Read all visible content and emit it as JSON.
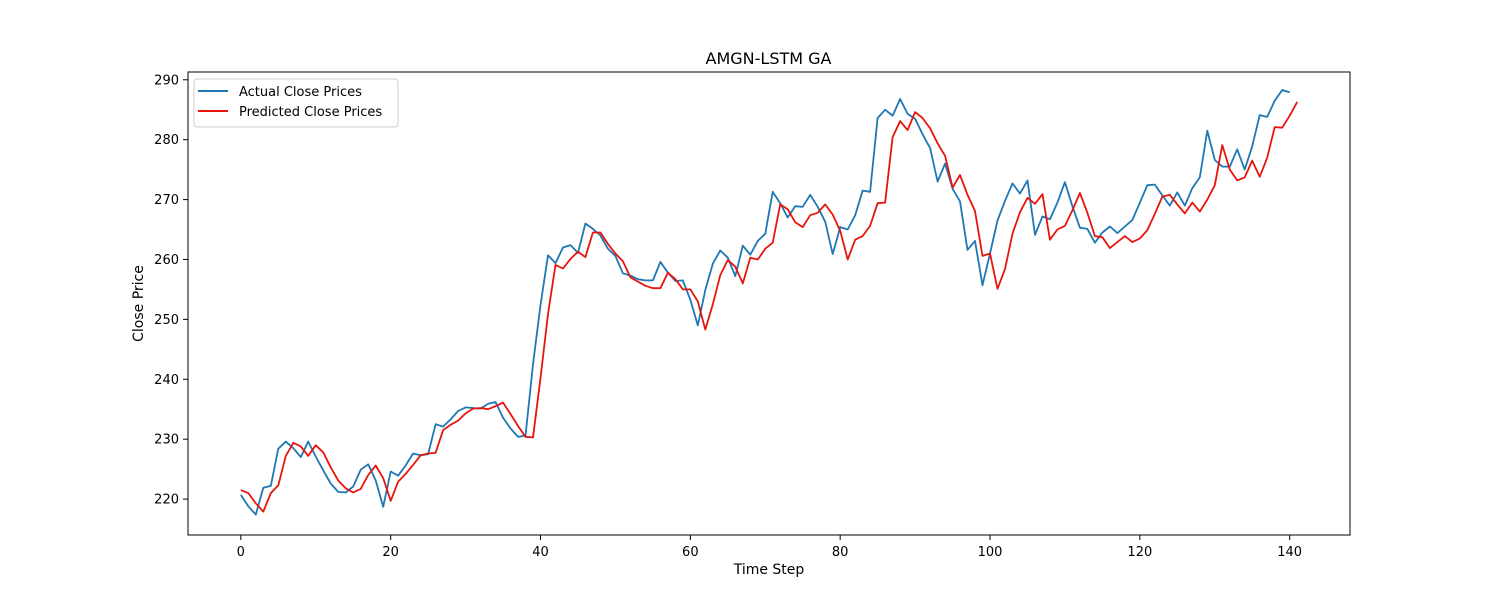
{
  "chart_data": {
    "type": "line",
    "title": "AMGN-LSTM GA",
    "xlabel": "Time Step",
    "ylabel": "Close Price",
    "xlim": [
      -7.05,
      148.05
    ],
    "ylim": [
      214.0,
      291.3
    ],
    "xticks": [
      0,
      20,
      40,
      60,
      80,
      100,
      120,
      140
    ],
    "yticks": [
      220,
      230,
      240,
      250,
      260,
      270,
      280,
      290
    ],
    "grid": false,
    "legend_position": "top-left",
    "series": [
      {
        "name": "Actual Close Prices",
        "color": "#1f77b4",
        "values": [
          220.7,
          218.8,
          217.4,
          221.9,
          222.2,
          228.4,
          229.6,
          228.5,
          227.0,
          229.6,
          227.1,
          224.8,
          222.6,
          221.2,
          221.1,
          222.1,
          224.9,
          225.8,
          223.1,
          218.7,
          224.6,
          223.9,
          225.6,
          227.6,
          227.3,
          227.5,
          232.5,
          232.1,
          233.3,
          234.7,
          235.3,
          235.2,
          235.1,
          235.9,
          236.2,
          233.6,
          231.8,
          230.4,
          230.6,
          242.5,
          252.4,
          260.7,
          259.4,
          262.0,
          262.4,
          261.1,
          266.0,
          265.1,
          264.0,
          261.8,
          260.6,
          257.7,
          257.3,
          256.7,
          256.5,
          256.5,
          259.6,
          257.8,
          256.4,
          256.5,
          253.3,
          249.0,
          254.9,
          259.3,
          261.5,
          260.3,
          257.2,
          262.3,
          260.8,
          263.1,
          264.3,
          271.3,
          269.4,
          267.0,
          268.9,
          268.8,
          270.8,
          268.8,
          266.3,
          260.9,
          265.4,
          265.0,
          267.4,
          271.5,
          271.3,
          283.6,
          285.0,
          284.0,
          286.8,
          284.3,
          283.5,
          280.9,
          278.6,
          273.0,
          276.0,
          271.8,
          269.7,
          261.6,
          263.1,
          255.7,
          261.0,
          266.5,
          269.8,
          272.7,
          271.0,
          273.2,
          264.1,
          267.2,
          266.7,
          269.5,
          272.9,
          268.9,
          265.3,
          265.1,
          262.8,
          264.5,
          265.5,
          264.4,
          265.5,
          266.6,
          269.5,
          272.4,
          272.5,
          270.7,
          269.0,
          271.2,
          269.0,
          271.9,
          273.7,
          281.5,
          276.6,
          275.5,
          275.5,
          278.4,
          275.0,
          278.9,
          284.1,
          283.8,
          286.5,
          288.3,
          287.9
        ]
      },
      {
        "name": "Predicted Close Prices",
        "color": "#e8140c",
        "values": [
          221.5,
          221.0,
          219.3,
          217.9,
          221.0,
          222.3,
          227.2,
          229.4,
          228.8,
          227.2,
          229.0,
          227.8,
          225.3,
          223.1,
          221.8,
          221.1,
          221.7,
          224.0,
          225.6,
          223.5,
          219.7,
          222.9,
          224.2,
          225.7,
          227.3,
          227.6,
          227.7,
          231.5,
          232.4,
          233.1,
          234.3,
          235.1,
          235.2,
          235.0,
          235.5,
          236.1,
          234.2,
          232.2,
          230.4,
          230.3,
          240.2,
          250.9,
          259.1,
          258.5,
          260.1,
          261.3,
          260.4,
          264.5,
          264.5,
          262.6,
          261.0,
          259.7,
          257.0,
          256.3,
          255.6,
          255.2,
          255.2,
          257.8,
          256.7,
          255.0,
          255.0,
          253.0,
          248.3,
          252.5,
          257.4,
          259.9,
          258.8,
          256.0,
          260.3,
          260.0,
          261.8,
          262.8,
          269.2,
          268.4,
          266.2,
          265.4,
          267.4,
          267.8,
          269.2,
          267.5,
          264.8,
          260.0,
          263.3,
          263.9,
          265.6,
          269.4,
          269.5,
          280.4,
          283.1,
          281.6,
          284.6,
          283.6,
          281.9,
          279.4,
          277.3,
          272.0,
          274.1,
          270.8,
          268.1,
          260.6,
          261.0,
          255.1,
          258.4,
          264.3,
          267.9,
          270.3,
          269.3,
          270.9,
          263.3,
          265.0,
          265.6,
          268.2,
          271.1,
          267.8,
          263.9,
          263.7,
          261.9,
          262.9,
          263.9,
          262.9,
          263.5,
          264.9,
          267.6,
          270.5,
          270.8,
          269.2,
          267.7,
          269.5,
          268.0,
          270.0,
          272.4,
          279.1,
          275.0,
          273.2,
          273.7,
          276.5,
          273.8,
          277.0,
          282.1,
          282.0,
          284.0,
          286.3
        ]
      }
    ]
  }
}
